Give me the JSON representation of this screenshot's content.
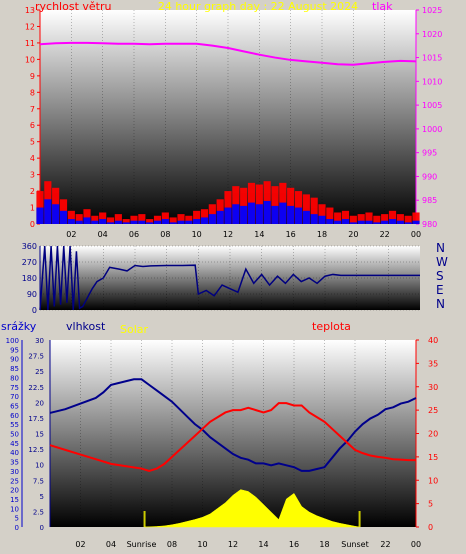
{
  "colors": {
    "wind_avg": "#ff0000",
    "wind_gust": "#0000ff",
    "pressure": "#ff00ff",
    "direction": "#000080",
    "humidity": "#00008b",
    "temperature": "#ff0000",
    "solar": "#ffff00",
    "rain": "#0000cc",
    "sun_marker": "#cccc00",
    "background": "#d4d0c8"
  },
  "chart_data": [
    {
      "type": "line",
      "title": "24 hour graph day : 22 August 2024",
      "labels": {
        "left": "rychlost větru",
        "right": "tlak"
      },
      "x_ticks": [
        "02",
        "04",
        "06",
        "08",
        "10",
        "12",
        "14",
        "16",
        "18",
        "20",
        "22",
        "00"
      ],
      "x_range_hours": [
        0,
        24
      ],
      "left_axis": {
        "range": [
          0,
          13
        ],
        "ticks": [
          0,
          1,
          2,
          3,
          4,
          5,
          6,
          7,
          8,
          9,
          10,
          11,
          12,
          13
        ]
      },
      "right_axis": {
        "range": [
          980,
          1025
        ],
        "ticks": [
          980,
          985,
          990,
          995,
          1000,
          1005,
          1010,
          1015,
          1020,
          1025
        ]
      },
      "series": [
        {
          "key": "pressure",
          "axis": "right",
          "x": [
            0,
            1,
            2,
            3,
            4,
            5,
            6,
            7,
            8,
            9,
            10,
            11,
            12,
            13,
            14,
            15,
            16,
            17,
            18,
            19,
            20,
            21,
            22,
            23,
            24
          ],
          "values": [
            1017.8,
            1018.0,
            1018.1,
            1018.1,
            1018.0,
            1017.9,
            1017.9,
            1017.8,
            1017.9,
            1017.9,
            1017.9,
            1017.5,
            1017.0,
            1016.3,
            1015.6,
            1015.0,
            1014.5,
            1014.2,
            1013.9,
            1013.6,
            1013.5,
            1013.8,
            1014.1,
            1014.3,
            1014.2
          ]
        },
        {
          "key": "wind_avg",
          "axis": "left",
          "x": [
            0,
            0.5,
            1,
            1.5,
            2,
            2.5,
            3,
            3.5,
            4,
            4.5,
            5,
            5.5,
            6,
            6.5,
            7,
            7.5,
            8,
            8.5,
            9,
            9.5,
            10,
            10.5,
            11,
            11.5,
            12,
            12.5,
            13,
            13.5,
            14,
            14.5,
            15,
            15.5,
            16,
            16.5,
            17,
            17.5,
            18,
            18.5,
            19,
            19.5,
            20,
            20.5,
            21,
            21.5,
            22,
            22.5,
            23,
            23.5,
            24
          ],
          "values": [
            2.0,
            2.6,
            2.2,
            1.5,
            0.8,
            0.6,
            0.9,
            0.5,
            0.7,
            0.4,
            0.6,
            0.3,
            0.5,
            0.6,
            0.3,
            0.5,
            0.7,
            0.4,
            0.6,
            0.5,
            0.8,
            0.9,
            1.2,
            1.5,
            2.0,
            2.3,
            2.2,
            2.5,
            2.4,
            2.6,
            2.3,
            2.5,
            2.2,
            2.0,
            1.8,
            1.6,
            1.2,
            1.0,
            0.7,
            0.8,
            0.5,
            0.6,
            0.7,
            0.5,
            0.6,
            0.8,
            0.6,
            0.5,
            0.7
          ]
        },
        {
          "key": "wind_gust",
          "axis": "left",
          "x": [
            0,
            0.5,
            1,
            1.5,
            2,
            2.5,
            3,
            3.5,
            4,
            4.5,
            5,
            5.5,
            6,
            6.5,
            7,
            7.5,
            8,
            8.5,
            9,
            9.5,
            10,
            10.5,
            11,
            11.5,
            12,
            12.5,
            13,
            13.5,
            14,
            14.5,
            15,
            15.5,
            16,
            16.5,
            17,
            17.5,
            18,
            18.5,
            19,
            19.5,
            20,
            20.5,
            21,
            21.5,
            22,
            22.5,
            23,
            23.5,
            24
          ],
          "values": [
            1.0,
            1.5,
            1.2,
            0.8,
            0.3,
            0.2,
            0.4,
            0.2,
            0.3,
            0.1,
            0.2,
            0.1,
            0.2,
            0.2,
            0.1,
            0.2,
            0.3,
            0.1,
            0.2,
            0.2,
            0.3,
            0.4,
            0.6,
            0.8,
            1.0,
            1.2,
            1.1,
            1.3,
            1.2,
            1.4,
            1.1,
            1.3,
            1.1,
            1.0,
            0.8,
            0.6,
            0.5,
            0.3,
            0.2,
            0.3,
            0.1,
            0.2,
            0.2,
            0.1,
            0.2,
            0.3,
            0.2,
            0.1,
            0.2
          ]
        }
      ]
    },
    {
      "type": "line",
      "labels": {
        "right": [
          "N",
          "W",
          "S",
          "E",
          "N"
        ]
      },
      "x_range_hours": [
        0,
        24
      ],
      "left_axis": {
        "range": [
          0,
          360
        ],
        "ticks": [
          0,
          90,
          180,
          270,
          360
        ]
      },
      "left_tick_labels": [
        "0",
        "90",
        "180",
        "270",
        "360"
      ],
      "tick_values": [
        0,
        90,
        180,
        270,
        360
      ],
      "series": [
        {
          "key": "direction",
          "x": [
            0,
            0.3,
            0.5,
            0.7,
            0.9,
            1.1,
            1.3,
            1.5,
            1.7,
            1.9,
            2.1,
            2.3,
            2.5,
            2.7,
            3.0,
            3.3,
            3.6,
            4.0,
            4.4,
            5.0,
            5.5,
            6.0,
            6.5,
            7.0,
            8.0,
            9.0,
            9.8,
            10.0,
            10.5,
            11.0,
            11.5,
            12.0,
            12.5,
            13.0,
            13.5,
            14.0,
            14.5,
            15.0,
            15.5,
            16.0,
            16.5,
            17.0,
            17.5,
            18.0,
            18.5,
            19.0,
            20.0,
            21.0,
            22.0,
            23.0,
            24.0
          ],
          "values": [
            0,
            360,
            0,
            360,
            20,
            360,
            30,
            360,
            40,
            360,
            0,
            330,
            10,
            20,
            70,
            120,
            160,
            180,
            240,
            230,
            220,
            250,
            245,
            248,
            250,
            250,
            252,
            90,
            110,
            80,
            140,
            120,
            100,
            230,
            150,
            200,
            140,
            190,
            150,
            200,
            160,
            180,
            150,
            190,
            200,
            195,
            195,
            195,
            195,
            195,
            195
          ]
        }
      ]
    },
    {
      "type": "line",
      "labels": {
        "rain": "srážky",
        "humidity": "vlhkost",
        "solar": "Solar",
        "temperature": "teplota"
      },
      "x_ticks": [
        "02",
        "04",
        "Sunrise",
        "08",
        "10",
        "12",
        "14",
        "16",
        "18",
        "Sunset",
        "22",
        "00"
      ],
      "x_range_hours": [
        0,
        24
      ],
      "rain_axis": {
        "range": [
          0,
          100
        ],
        "ticks": [
          0,
          5,
          10,
          15,
          20,
          25,
          30,
          35,
          40,
          45,
          50,
          55,
          60,
          65,
          70,
          75,
          80,
          85,
          90,
          95,
          100
        ]
      },
      "humidity_axis": {
        "range": [
          0,
          30
        ],
        "ticks": [
          0,
          2.5,
          5,
          7.5,
          10,
          12.5,
          15,
          17.5,
          20,
          22.5,
          25,
          27.5,
          30
        ]
      },
      "temp_axis": {
        "range": [
          0,
          40
        ],
        "ticks": [
          0,
          5,
          10,
          15,
          20,
          25,
          30,
          35,
          40
        ]
      },
      "sunrise_hour": 6.2,
      "sunset_hour": 20.3,
      "series": [
        {
          "key": "humidity",
          "axis": "rain",
          "x": [
            0,
            1,
            2,
            3,
            3.5,
            4,
            4.5,
            5,
            5.5,
            6,
            6.5,
            7,
            7.5,
            8,
            8.5,
            9,
            9.5,
            10,
            10.5,
            11,
            11.5,
            12,
            12.5,
            13,
            13.5,
            14,
            14.5,
            15,
            15.5,
            16,
            16.5,
            17,
            17.5,
            18,
            18.5,
            19,
            19.5,
            20,
            20.5,
            21,
            21.5,
            22,
            22.5,
            23,
            23.5,
            24
          ],
          "values": [
            61,
            63,
            66,
            69,
            72,
            76,
            77,
            78,
            79,
            79,
            76,
            73,
            70,
            67,
            63,
            59,
            55,
            52,
            48,
            45,
            42,
            39,
            37,
            36,
            34,
            34,
            33,
            34,
            33,
            32,
            30,
            30,
            31,
            32,
            37,
            42,
            46,
            51,
            55,
            58,
            60,
            63,
            64,
            66,
            67,
            69
          ]
        },
        {
          "key": "temperature",
          "axis": "temp",
          "x": [
            0,
            1,
            2,
            3,
            4,
            5,
            6,
            6.5,
            7,
            7.5,
            8,
            8.5,
            9,
            9.5,
            10,
            10.5,
            11,
            11.5,
            12,
            12.5,
            13,
            13.5,
            14,
            14.5,
            15,
            15.5,
            16,
            16.5,
            17,
            17.5,
            18,
            18.5,
            19,
            19.5,
            20,
            20.5,
            21,
            21.5,
            22,
            22.5,
            23,
            23.5,
            24
          ],
          "values": [
            17.5,
            16.5,
            15.5,
            14.5,
            13.5,
            13.0,
            12.5,
            12.0,
            12.5,
            13.5,
            15.0,
            16.5,
            18.0,
            19.5,
            21.0,
            22.5,
            23.5,
            24.5,
            25.0,
            25.0,
            25.5,
            25.0,
            24.5,
            25.0,
            26.5,
            26.5,
            26.0,
            26.0,
            24.5,
            23.5,
            22.5,
            21.0,
            19.5,
            18.0,
            16.5,
            15.8,
            15.3,
            15.0,
            14.8,
            14.5,
            14.4,
            14.3,
            14.3
          ]
        },
        {
          "key": "solar",
          "axis": "rain",
          "x": [
            6.2,
            7,
            7.5,
            8,
            8.5,
            9,
            9.5,
            10,
            10.5,
            11,
            11.5,
            12,
            12.5,
            13,
            13.5,
            14,
            14.5,
            15,
            15.5,
            16,
            16.5,
            17,
            17.5,
            18,
            18.5,
            19,
            19.5,
            20,
            20.3
          ],
          "values": [
            0,
            0.3,
            0.6,
            1.2,
            2.0,
            3.0,
            4.0,
            5.2,
            7.0,
            10.0,
            13.0,
            17.0,
            20.0,
            19.0,
            16.0,
            12.0,
            8.0,
            4.0,
            15.0,
            18.0,
            11.0,
            8.0,
            6.0,
            4.5,
            3.0,
            2.0,
            1.2,
            0.4,
            0
          ]
        }
      ]
    }
  ]
}
